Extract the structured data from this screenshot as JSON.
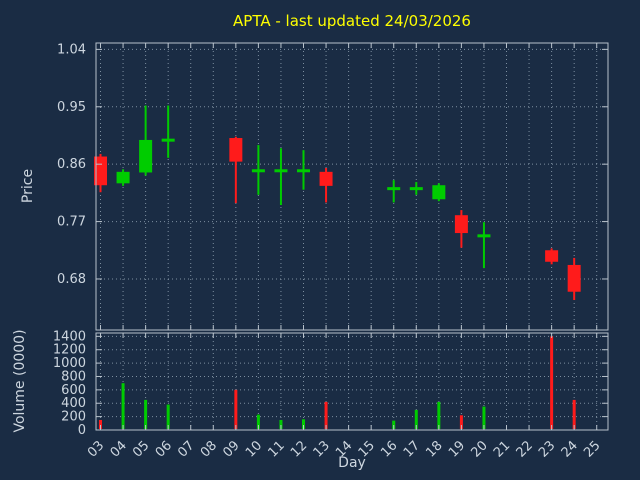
{
  "colors": {
    "background": "#1a2c44",
    "title": "#ffff00",
    "text": "#cdd6df",
    "grid": "#9fb0bf",
    "border": "#b8c2cc",
    "up": "#00cc00",
    "down": "#ff1b1b"
  },
  "chart_data": {
    "type": "candlestick",
    "title": "APTA - last updated 24/03/2026",
    "xlabel": "Day",
    "price_ylabel": "Price",
    "volume_ylabel": "Volume (0000)",
    "legend": "none",
    "grid": "dotted",
    "x_axis": {
      "min": 2.8,
      "max": 25.5,
      "ticks": [
        {
          "value": 3,
          "label": "03"
        },
        {
          "value": 4,
          "label": "04"
        },
        {
          "value": 5,
          "label": "05"
        },
        {
          "value": 6,
          "label": "06"
        },
        {
          "value": 7,
          "label": "07"
        },
        {
          "value": 8,
          "label": "08"
        },
        {
          "value": 9,
          "label": "09"
        },
        {
          "value": 10,
          "label": "10"
        },
        {
          "value": 11,
          "label": "11"
        },
        {
          "value": 12,
          "label": "12"
        },
        {
          "value": 13,
          "label": "13"
        },
        {
          "value": 14,
          "label": "14"
        },
        {
          "value": 15,
          "label": "15"
        },
        {
          "value": 16,
          "label": "16"
        },
        {
          "value": 17,
          "label": "17"
        },
        {
          "value": 18,
          "label": "18"
        },
        {
          "value": 19,
          "label": "19"
        },
        {
          "value": 20,
          "label": "20"
        },
        {
          "value": 21,
          "label": "21"
        },
        {
          "value": 22,
          "label": "22"
        },
        {
          "value": 23,
          "label": "23"
        },
        {
          "value": 24,
          "label": "24"
        },
        {
          "value": 25,
          "label": "25"
        }
      ]
    },
    "price_axis": {
      "min": 0.6,
      "max": 1.05,
      "ticks": [
        {
          "value": 1.04,
          "label": "1.04"
        },
        {
          "value": 0.95,
          "label": "0.95"
        },
        {
          "value": 0.86,
          "label": "0.86"
        },
        {
          "value": 0.77,
          "label": "0.77"
        },
        {
          "value": 0.68,
          "label": "0.68"
        }
      ]
    },
    "volume_axis": {
      "min": 0,
      "max": 1450,
      "ticks": [
        {
          "value": 1400,
          "label": "1400"
        },
        {
          "value": 1200,
          "label": "1200"
        },
        {
          "value": 1000,
          "label": "1000"
        },
        {
          "value": 800,
          "label": "800"
        },
        {
          "value": 600,
          "label": "600"
        },
        {
          "value": 400,
          "label": "400"
        },
        {
          "value": 200,
          "label": "200"
        },
        {
          "value": 0,
          "label": "0"
        }
      ]
    },
    "candles": [
      {
        "day": 3,
        "open": 0.872,
        "high": 0.876,
        "low": 0.816,
        "close": 0.827,
        "volume": 150
      },
      {
        "day": 4,
        "open": 0.83,
        "high": 0.852,
        "low": 0.826,
        "close": 0.848,
        "volume": 700
      },
      {
        "day": 5,
        "open": 0.847,
        "high": 0.952,
        "low": 0.842,
        "close": 0.898,
        "volume": 450
      },
      {
        "day": 6,
        "open": 0.896,
        "high": 0.952,
        "low": 0.87,
        "close": 0.9,
        "volume": 380
      },
      {
        "day": 9,
        "open": 0.901,
        "high": 0.903,
        "low": 0.799,
        "close": 0.864,
        "volume": 600
      },
      {
        "day": 10,
        "open": 0.849,
        "high": 0.89,
        "low": 0.812,
        "close": 0.852,
        "volume": 230
      },
      {
        "day": 11,
        "open": 0.849,
        "high": 0.885,
        "low": 0.796,
        "close": 0.852,
        "volume": 150
      },
      {
        "day": 12,
        "open": 0.849,
        "high": 0.882,
        "low": 0.82,
        "close": 0.852,
        "volume": 160
      },
      {
        "day": 13,
        "open": 0.848,
        "high": 0.854,
        "low": 0.8,
        "close": 0.826,
        "volume": 420
      },
      {
        "day": 16,
        "open": 0.821,
        "high": 0.835,
        "low": 0.8,
        "close": 0.824,
        "volume": 140
      },
      {
        "day": 17,
        "open": 0.821,
        "high": 0.832,
        "low": 0.812,
        "close": 0.824,
        "volume": 300
      },
      {
        "day": 18,
        "open": 0.805,
        "high": 0.83,
        "low": 0.802,
        "close": 0.827,
        "volume": 420
      },
      {
        "day": 19,
        "open": 0.78,
        "high": 0.788,
        "low": 0.729,
        "close": 0.752,
        "volume": 220
      },
      {
        "day": 20,
        "open": 0.747,
        "high": 0.769,
        "low": 0.697,
        "close": 0.75,
        "volume": 350
      },
      {
        "day": 23,
        "open": 0.725,
        "high": 0.728,
        "low": 0.703,
        "close": 0.707,
        "volume": 1400
      },
      {
        "day": 24,
        "open": 0.702,
        "high": 0.713,
        "low": 0.647,
        "close": 0.66,
        "volume": 450
      }
    ]
  }
}
